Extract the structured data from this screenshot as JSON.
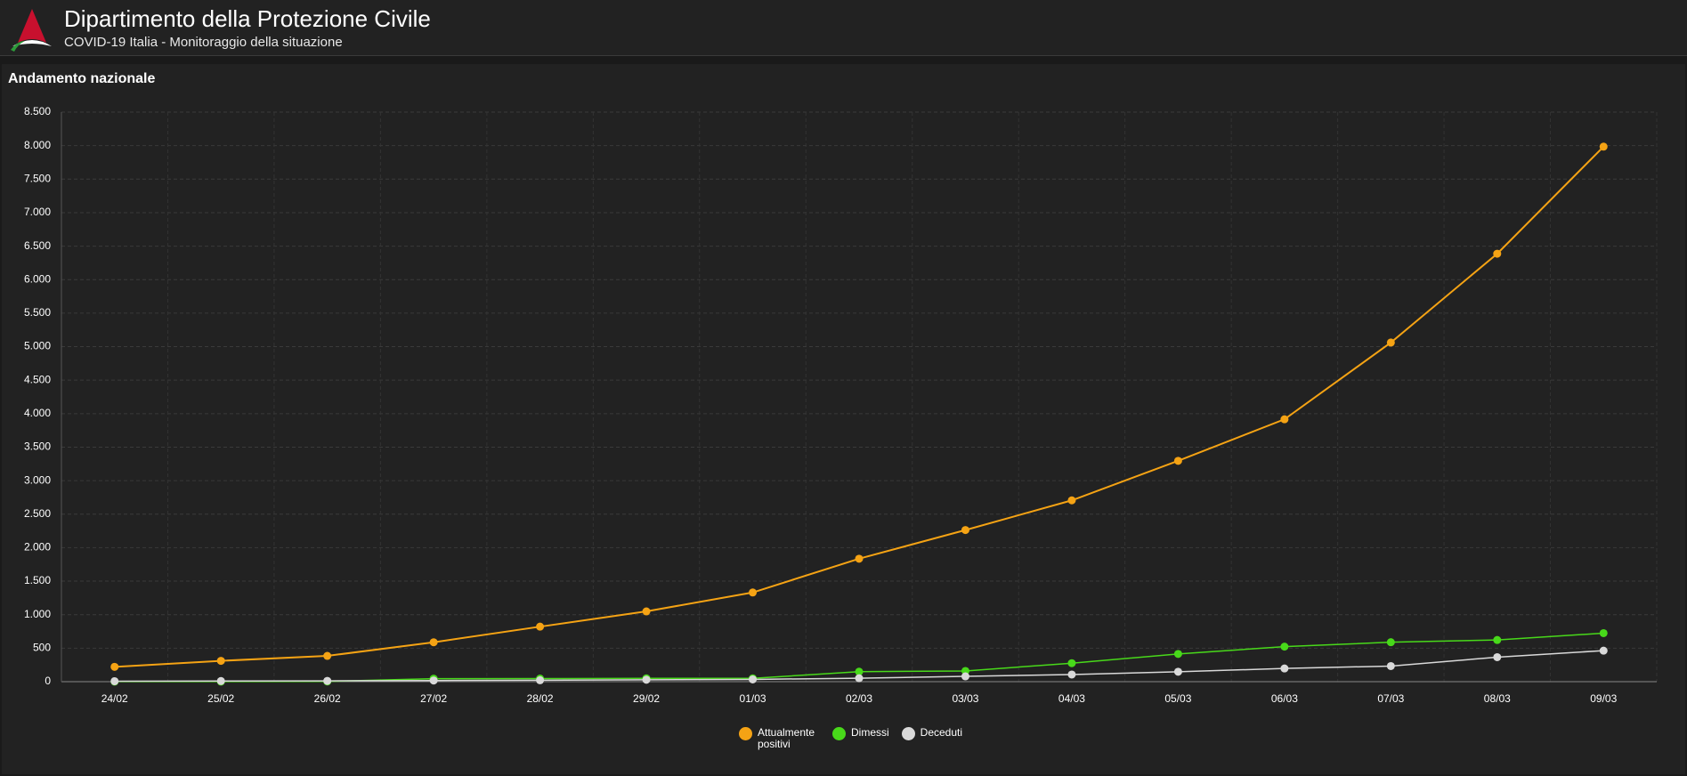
{
  "header": {
    "title": "Dipartimento della Protezione Civile",
    "subtitle": "COVID-19 Italia - Monitoraggio della situazione"
  },
  "chart_data": {
    "type": "line",
    "title": "Andamento nazionale",
    "categories": [
      "24/02",
      "25/02",
      "26/02",
      "27/02",
      "28/02",
      "29/02",
      "01/03",
      "02/03",
      "03/03",
      "04/03",
      "05/03",
      "06/03",
      "07/03",
      "08/03",
      "09/03"
    ],
    "series": [
      {
        "name": "Attualmente positivi",
        "color": "#f5a314",
        "values": [
          221,
          311,
          385,
          588,
          821,
          1049,
          1331,
          1835,
          2263,
          2706,
          3296,
          3916,
          5061,
          6387,
          7985
        ]
      },
      {
        "name": "Dimessi",
        "color": "#48d91a",
        "values": [
          1,
          1,
          3,
          45,
          46,
          50,
          50,
          149,
          160,
          276,
          414,
          523,
          589,
          622,
          724
        ]
      },
      {
        "name": "Deceduti",
        "color": "#d9d9d9",
        "values": [
          7,
          10,
          12,
          17,
          21,
          29,
          34,
          52,
          79,
          107,
          148,
          197,
          233,
          366,
          463
        ]
      }
    ],
    "ylim": [
      0,
      8500
    ],
    "yticks": [
      0,
      500,
      {
        "value": 1000,
        "label": "1.000"
      },
      {
        "value": 1500,
        "label": "1.500"
      },
      {
        "value": 2000,
        "label": "2.000"
      },
      {
        "value": 2500,
        "label": "2.500"
      },
      {
        "value": 3000,
        "label": "3.000"
      },
      {
        "value": 3500,
        "label": "3.500"
      },
      {
        "value": 4000,
        "label": "4.000"
      },
      {
        "value": 4500,
        "label": "4.500"
      },
      {
        "value": 5000,
        "label": "5.000"
      },
      {
        "value": 5500,
        "label": "5.500"
      },
      {
        "value": 6000,
        "label": "6.000"
      },
      {
        "value": 6500,
        "label": "6.500"
      },
      {
        "value": 7000,
        "label": "7.000"
      },
      {
        "value": 7500,
        "label": "7.500"
      },
      {
        "value": 8000,
        "label": "8.000"
      },
      {
        "value": 8500,
        "label": "8.500"
      }
    ],
    "grid": true
  }
}
